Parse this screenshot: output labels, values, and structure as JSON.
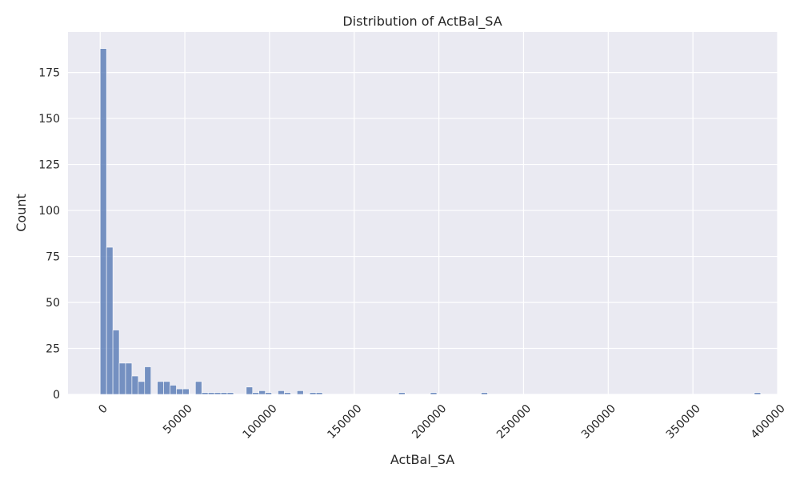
{
  "chart_data": {
    "type": "bar",
    "title": "Distribution of ActBal_SA",
    "xlabel": "ActBal_SA",
    "ylabel": "Count",
    "xlim": [
      -19000,
      400000
    ],
    "ylim": [
      0,
      197
    ],
    "x_ticks": [
      0,
      50000,
      100000,
      150000,
      200000,
      250000,
      300000,
      350000,
      400000
    ],
    "y_ticks": [
      0,
      25,
      50,
      75,
      100,
      125,
      150,
      175
    ],
    "grid": true,
    "bin_width": 3750,
    "bin_starts": [
      0,
      3750,
      7500,
      11250,
      15000,
      18750,
      22500,
      26250,
      30000,
      33750,
      37500,
      41250,
      45000,
      48750,
      52500,
      56250,
      60000,
      63750,
      67500,
      71250,
      75000,
      78750,
      82500,
      86250,
      90000,
      93750,
      97500,
      101250,
      105000,
      108750,
      112500,
      116250,
      120000,
      123750,
      127500,
      131250,
      135000,
      138750,
      142500,
      146250,
      150000,
      153750,
      157500,
      161250,
      165000,
      168750,
      172500,
      176250,
      180000,
      183750,
      187500,
      191250,
      195000,
      198750,
      202500,
      206250,
      210000,
      213750,
      217500,
      221250,
      225000,
      228750,
      232500,
      236250,
      240000,
      243750,
      247500,
      251250,
      255000,
      258750,
      262500,
      266250,
      270000,
      273750,
      277500,
      281250,
      285000,
      288750,
      292500,
      296250,
      300000,
      303750,
      307500,
      311250,
      315000,
      318750,
      322500,
      326250,
      330000,
      333750,
      337500,
      341250,
      345000,
      348750,
      352500,
      356250,
      360000,
      363750,
      367500,
      371250,
      375000,
      378750,
      382500,
      386250
    ],
    "counts": [
      188,
      80,
      35,
      17,
      17,
      10,
      7,
      15,
      0,
      7,
      7,
      5,
      3,
      3,
      0,
      7,
      1,
      1,
      1,
      1,
      1,
      0,
      0,
      4,
      1,
      2,
      1,
      0,
      2,
      1,
      0,
      2,
      0,
      1,
      1,
      0,
      0,
      0,
      0,
      0,
      0,
      0,
      0,
      0,
      0,
      0,
      0,
      1,
      0,
      0,
      0,
      0,
      1,
      0,
      0,
      0,
      0,
      0,
      0,
      0,
      1,
      0,
      0,
      0,
      0,
      0,
      0,
      0,
      0,
      0,
      0,
      0,
      0,
      0,
      0,
      0,
      0,
      0,
      0,
      0,
      0,
      0,
      0,
      0,
      0,
      0,
      0,
      0,
      0,
      0,
      0,
      0,
      0,
      0,
      0,
      0,
      0,
      0,
      0,
      0,
      0,
      0,
      0,
      1
    ],
    "bar_color": "#4c72b0",
    "background_color": "#eaeaf2",
    "grid_color": "#ffffff"
  }
}
